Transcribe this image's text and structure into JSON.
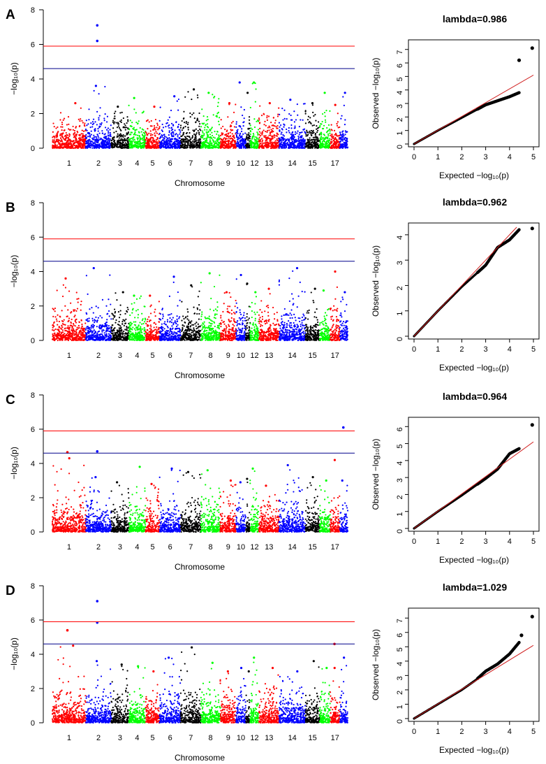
{
  "figure": {
    "ylabel_manhattan": "−log₁₀(p)",
    "xlabel_manhattan": "Chromosome",
    "qq_xlabel": "Expected  −log₁₀(p)",
    "qq_ylabel": "Observed  −log₁₀(p)"
  },
  "chart_data": [
    {
      "type": "scatter",
      "panel": "A",
      "subtype": "manhattan",
      "title": "",
      "xlabel": "Chromosome",
      "ylabel": "−log₁₀(p)",
      "ylim": [
        0,
        8
      ],
      "yticks": [
        "0",
        "2",
        "4",
        "6",
        "8"
      ],
      "chromosomes": [
        "1",
        "2",
        "3",
        "4",
        "5",
        "6",
        "7",
        "8",
        "9",
        "10",
        "11",
        "12",
        "13",
        "14",
        "15",
        "16",
        "17",
        "18"
      ],
      "chr_labels": [
        "1",
        "2",
        "3",
        "4",
        "5",
        "6",
        "7",
        "8",
        "9",
        "10",
        "12",
        "13",
        "14",
        "15",
        "17"
      ],
      "chr_colors": [
        "#ff0000",
        "#0000ff",
        "#000000",
        "#00ff00"
      ],
      "thresholds": [
        {
          "value": 5.9,
          "color": "#ff0000"
        },
        {
          "value": 4.6,
          "color": "#00008b"
        }
      ],
      "peak_heights": [
        2.6,
        3.6,
        2.4,
        2.9,
        2.4,
        3.0,
        3.4,
        3.2,
        2.6,
        3.8,
        3.2,
        3.8,
        2.6,
        2.8,
        2.6,
        3.2,
        2.5,
        3.2
      ],
      "top_hits": [
        {
          "chr": 2,
          "y": 7.1
        },
        {
          "chr": 2,
          "y": 6.2
        }
      ]
    },
    {
      "type": "scatter",
      "panel": "A",
      "subtype": "qq",
      "title": "lambda=0.986",
      "xlabel": "Expected  −log₁₀(p)",
      "ylabel": "Observed  −log₁₀(p)",
      "xlim": [
        0,
        5
      ],
      "ylim": [
        0,
        7.4
      ],
      "xticks": [
        "0",
        "1",
        "2",
        "3",
        "4",
        "5"
      ],
      "yticks": [
        "0",
        "1",
        "2",
        "3",
        "4",
        "5",
        "6",
        "7"
      ],
      "curve": [
        [
          0,
          0
        ],
        [
          1,
          1
        ],
        [
          2,
          1.95
        ],
        [
          3,
          2.9
        ],
        [
          3.5,
          3.2
        ],
        [
          4,
          3.5
        ],
        [
          4.4,
          3.8
        ]
      ],
      "outliers": [
        [
          4.4,
          6.2
        ],
        [
          4.95,
          7.1
        ]
      ],
      "reference_line_end": [
        5,
        5.1
      ]
    },
    {
      "type": "scatter",
      "panel": "B",
      "subtype": "manhattan",
      "title": "",
      "xlabel": "Chromosome",
      "ylabel": "−log₁₀(p)",
      "ylim": [
        0,
        8
      ],
      "yticks": [
        "0",
        "2",
        "4",
        "6",
        "8"
      ],
      "chromosomes": [
        "1",
        "2",
        "3",
        "4",
        "5",
        "6",
        "7",
        "8",
        "9",
        "10",
        "11",
        "12",
        "13",
        "14",
        "15",
        "16",
        "17",
        "18"
      ],
      "chr_labels": [
        "1",
        "2",
        "3",
        "4",
        "5",
        "6",
        "7",
        "8",
        "9",
        "10",
        "12",
        "13",
        "14",
        "15",
        "17"
      ],
      "chr_colors": [
        "#ff0000",
        "#0000ff",
        "#000000",
        "#00ff00"
      ],
      "thresholds": [
        {
          "value": 5.9,
          "color": "#ff0000"
        },
        {
          "value": 4.6,
          "color": "#00008b"
        }
      ],
      "peak_heights": [
        3.6,
        4.2,
        2.8,
        2.6,
        2.6,
        3.7,
        3.2,
        3.9,
        2.8,
        3.8,
        3.3,
        2.8,
        3.0,
        4.2,
        3.0,
        2.9,
        4.0,
        2.8
      ],
      "top_hits": []
    },
    {
      "type": "scatter",
      "panel": "B",
      "subtype": "qq",
      "title": "lambda=0.962",
      "xlabel": "Expected  −log₁₀(p)",
      "ylabel": "Observed  −log₁₀(p)",
      "xlim": [
        0,
        5
      ],
      "ylim": [
        0,
        4.3
      ],
      "xticks": [
        "0",
        "1",
        "2",
        "3",
        "4",
        "5"
      ],
      "yticks": [
        "0",
        "1",
        "2",
        "3",
        "4"
      ],
      "curve": [
        [
          0,
          0
        ],
        [
          1,
          1
        ],
        [
          2,
          1.95
        ],
        [
          3,
          2.8
        ],
        [
          3.5,
          3.5
        ],
        [
          4,
          3.8
        ],
        [
          4.4,
          4.2
        ]
      ],
      "outliers": [
        [
          4.95,
          4.25
        ]
      ],
      "reference_line_end": [
        5,
        5
      ]
    },
    {
      "type": "scatter",
      "panel": "C",
      "subtype": "manhattan",
      "title": "",
      "xlabel": "Chromosome",
      "ylabel": "−log₁₀(p)",
      "ylim": [
        0,
        8
      ],
      "yticks": [
        "0",
        "2",
        "4",
        "6",
        "8"
      ],
      "chromosomes": [
        "1",
        "2",
        "3",
        "4",
        "5",
        "6",
        "7",
        "8",
        "9",
        "10",
        "11",
        "12",
        "13",
        "14",
        "15",
        "16",
        "17",
        "18"
      ],
      "chr_labels": [
        "1",
        "2",
        "3",
        "4",
        "5",
        "6",
        "7",
        "8",
        "9",
        "10",
        "12",
        "13",
        "14",
        "15",
        "17"
      ],
      "chr_colors": [
        "#ff0000",
        "#0000ff",
        "#000000",
        "#00ff00"
      ],
      "thresholds": [
        {
          "value": 5.9,
          "color": "#ff0000"
        },
        {
          "value": 4.6,
          "color": "#00008b"
        }
      ],
      "peak_heights": [
        4.3,
        3.2,
        2.9,
        3.8,
        2.8,
        3.7,
        3.5,
        3.6,
        3.0,
        2.9,
        3.1,
        3.7,
        2.7,
        3.9,
        3.2,
        3.0,
        4.2,
        3.0
      ],
      "top_hits": [
        {
          "chr": 1,
          "y": 4.65
        },
        {
          "chr": 2,
          "y": 4.7
        },
        {
          "chr": 18,
          "y": 6.1
        }
      ]
    },
    {
      "type": "scatter",
      "panel": "C",
      "subtype": "qq",
      "title": "lambda=0.964",
      "xlabel": "Expected  −log₁₀(p)",
      "ylabel": "Observed  −log₁₀(p)",
      "xlim": [
        0,
        5
      ],
      "ylim": [
        0,
        6.3
      ],
      "xticks": [
        "0",
        "1",
        "2",
        "3",
        "4",
        "5"
      ],
      "yticks": [
        "0",
        "1",
        "2",
        "3",
        "4",
        "5",
        "6"
      ],
      "curve": [
        [
          0,
          0
        ],
        [
          1,
          1
        ],
        [
          2,
          1.95
        ],
        [
          3,
          2.95
        ],
        [
          3.5,
          3.5
        ],
        [
          4,
          4.4
        ],
        [
          4.4,
          4.7
        ]
      ],
      "outliers": [
        [
          4.95,
          6.1
        ]
      ],
      "reference_line_end": [
        5,
        5.1
      ]
    },
    {
      "type": "scatter",
      "panel": "D",
      "subtype": "manhattan",
      "title": "",
      "xlabel": "Chromosome",
      "ylabel": "−log₁₀(p)",
      "ylim": [
        0,
        8
      ],
      "yticks": [
        "0",
        "2",
        "4",
        "6",
        "8"
      ],
      "chromosomes": [
        "1",
        "2",
        "3",
        "4",
        "5",
        "6",
        "7",
        "8",
        "9",
        "10",
        "11",
        "12",
        "13",
        "14",
        "15",
        "16",
        "17",
        "18"
      ],
      "chr_labels": [
        "1",
        "2",
        "3",
        "4",
        "5",
        "6",
        "7",
        "8",
        "9",
        "10",
        "12",
        "13",
        "14",
        "15",
        "17"
      ],
      "chr_colors": [
        "#ff0000",
        "#0000ff",
        "#000000",
        "#00ff00"
      ],
      "thresholds": [
        {
          "value": 5.9,
          "color": "#ff0000"
        },
        {
          "value": 4.6,
          "color": "#00008b"
        }
      ],
      "peak_heights": [
        4.5,
        3.6,
        3.4,
        3.3,
        3.0,
        3.8,
        4.4,
        3.5,
        3.0,
        3.2,
        3.0,
        3.8,
        3.2,
        3.0,
        3.6,
        3.2,
        3.2,
        3.8
      ],
      "top_hits": [
        {
          "chr": 1,
          "y": 5.4
        },
        {
          "chr": 2,
          "y": 7.1
        },
        {
          "chr": 2,
          "y": 5.85
        },
        {
          "chr": 17,
          "y": 4.6
        }
      ]
    },
    {
      "type": "scatter",
      "panel": "D",
      "subtype": "qq",
      "title": "lambda=1.029",
      "xlabel": "Expected  −log₁₀(p)",
      "ylabel": "Observed  −log₁₀(p)",
      "xlim": [
        0,
        5
      ],
      "ylim": [
        0,
        7.4
      ],
      "xticks": [
        "0",
        "1",
        "2",
        "3",
        "4",
        "5"
      ],
      "yticks": [
        "0",
        "1",
        "2",
        "3",
        "4",
        "5",
        "6",
        "7"
      ],
      "curve": [
        [
          0,
          0
        ],
        [
          1,
          1.0
        ],
        [
          2,
          2.0
        ],
        [
          2.6,
          2.7
        ],
        [
          3,
          3.3
        ],
        [
          3.5,
          3.8
        ],
        [
          4,
          4.5
        ],
        [
          4.4,
          5.3
        ]
      ],
      "outliers": [
        [
          4.5,
          5.8
        ],
        [
          4.95,
          7.1
        ]
      ],
      "reference_line_end": [
        5,
        5.1
      ]
    }
  ]
}
